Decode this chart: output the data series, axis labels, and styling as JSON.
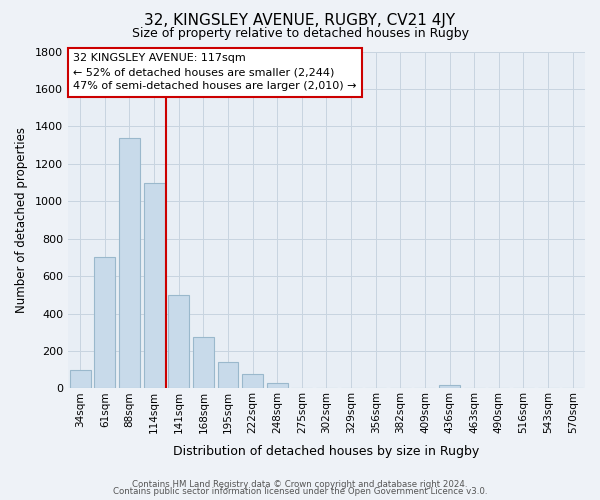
{
  "title": "32, KINGSLEY AVENUE, RUGBY, CV21 4JY",
  "subtitle": "Size of property relative to detached houses in Rugby",
  "xlabel": "Distribution of detached houses by size in Rugby",
  "ylabel": "Number of detached properties",
  "bar_color": "#c8daea",
  "bar_edge_color": "#9ab8cc",
  "categories": [
    "34sqm",
    "61sqm",
    "88sqm",
    "114sqm",
    "141sqm",
    "168sqm",
    "195sqm",
    "222sqm",
    "248sqm",
    "275sqm",
    "302sqm",
    "329sqm",
    "356sqm",
    "382sqm",
    "409sqm",
    "436sqm",
    "463sqm",
    "490sqm",
    "516sqm",
    "543sqm",
    "570sqm"
  ],
  "values": [
    100,
    700,
    1340,
    1100,
    500,
    275,
    140,
    75,
    30,
    0,
    0,
    0,
    0,
    0,
    0,
    20,
    0,
    0,
    0,
    0,
    0
  ],
  "property_index": 3,
  "ylim": [
    0,
    1800
  ],
  "yticks": [
    0,
    200,
    400,
    600,
    800,
    1000,
    1200,
    1400,
    1600,
    1800
  ],
  "annotation_box_text": "32 KINGSLEY AVENUE: 117sqm\n← 52% of detached houses are smaller (2,244)\n47% of semi-detached houses are larger (2,010) →",
  "footer_line1": "Contains HM Land Registry data © Crown copyright and database right 2024.",
  "footer_line2": "Contains public sector information licensed under the Open Government Licence v3.0.",
  "background_color": "#eef2f7",
  "plot_bg_color": "#e8eef5",
  "grid_color": "#c8d4e0",
  "red_line_color": "#cc0000",
  "box_edge_color": "#cc0000"
}
